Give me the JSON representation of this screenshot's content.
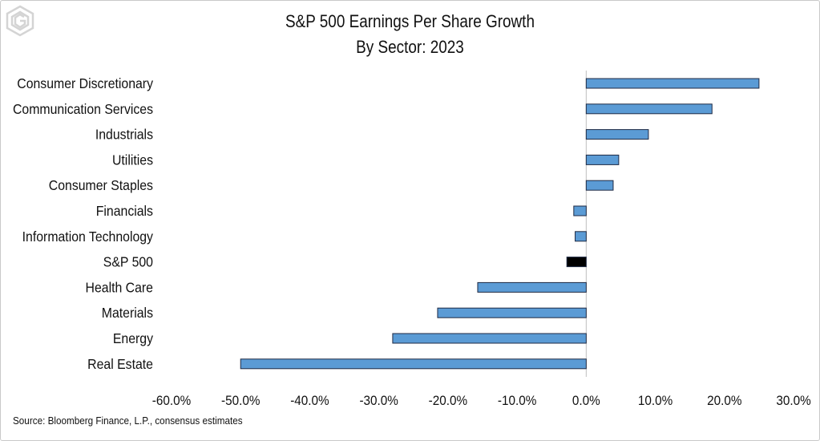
{
  "title_line1": "S&P 500 Earnings Per Share Growth",
  "title_line2": "By Sector: 2023",
  "source": "Source: Bloomberg Finance, L.P., consensus estimates",
  "colors": {
    "bar": "#5b9bd5",
    "highlight": "#000000",
    "outline": "#1f2a44",
    "axis": "#bfbfbf"
  },
  "chart_data": {
    "type": "bar",
    "orientation": "horizontal",
    "categories": [
      "Consumer Discretionary",
      "Communication Services",
      "Industrials",
      "Utilities",
      "Consumer Staples",
      "Financials",
      "Information Technology",
      "S&P 500",
      "Health Care",
      "Materials",
      "Energy",
      "Real Estate"
    ],
    "values": [
      25.0,
      18.2,
      9.0,
      4.7,
      3.9,
      -1.8,
      -1.6,
      -2.8,
      -15.7,
      -21.5,
      -28.0,
      -50.0
    ],
    "highlight": "S&P 500",
    "xlim": [
      -60,
      30
    ],
    "xticks": [
      -60,
      -50,
      -40,
      -30,
      -20,
      -10,
      0,
      10,
      20,
      30
    ],
    "xtick_labels": [
      "-60.0%",
      "-50.0%",
      "-40.0%",
      "-30.0%",
      "-20.0%",
      "-10.0%",
      "0.0%",
      "10.0%",
      "20.0%",
      "30.0%"
    ],
    "xlabel": "",
    "ylabel": "",
    "grid": false,
    "legend": "none"
  }
}
